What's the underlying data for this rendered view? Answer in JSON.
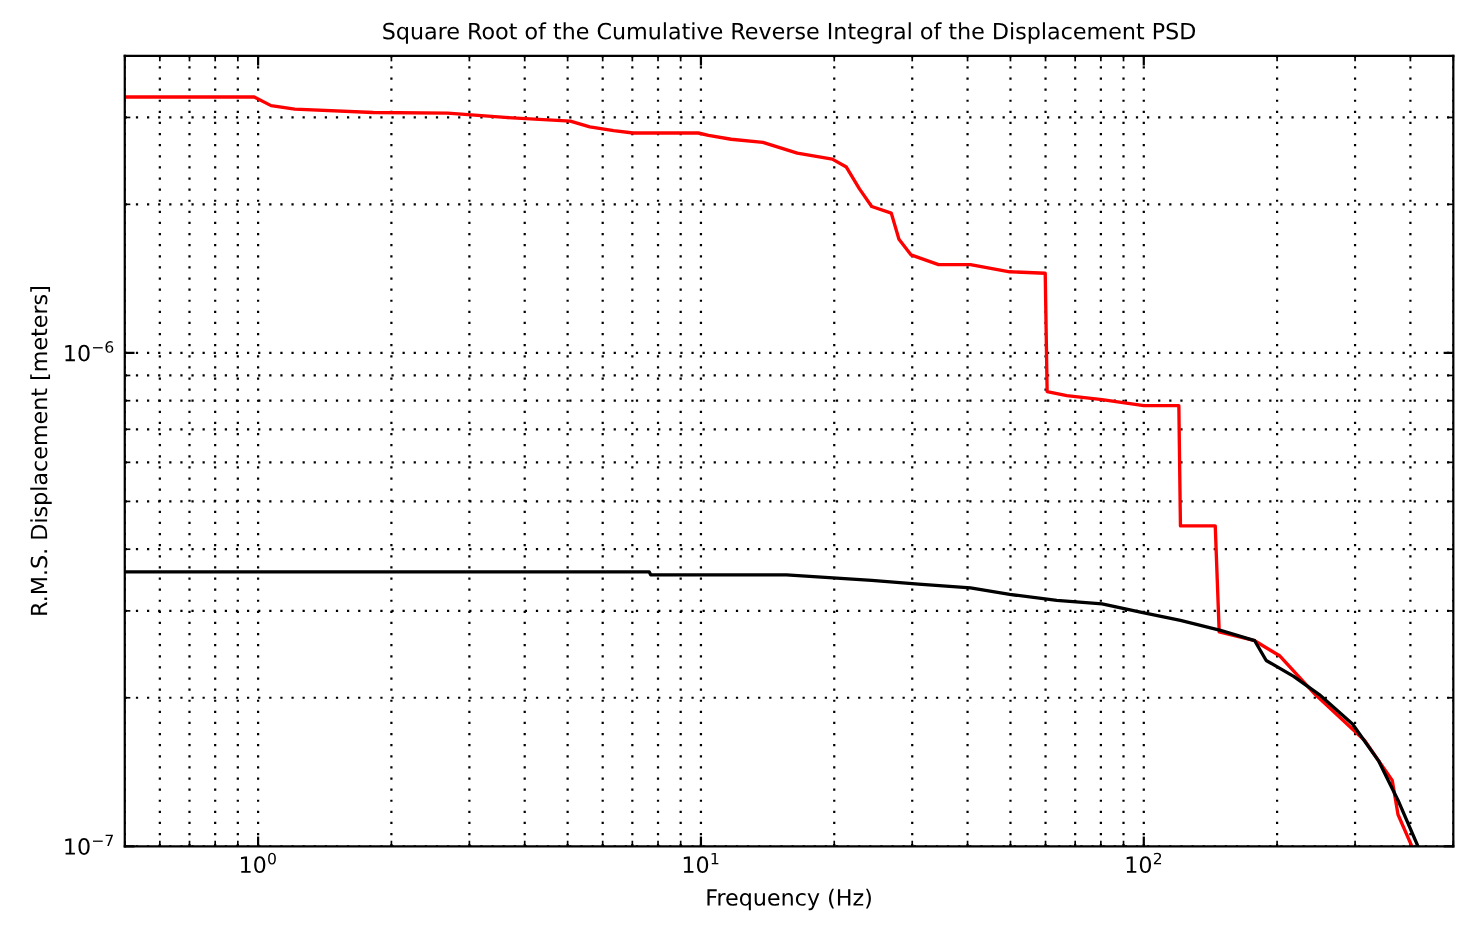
{
  "chart_data": {
    "type": "line",
    "title": "Square Root of the Cumulative Reverse Integral of the Displacement PSD",
    "xlabel": "Frequency (Hz)",
    "ylabel": "R.M.S. Displacement [meters]",
    "log": "xy",
    "grid": true,
    "xlim": [
      0.5,
      500
    ],
    "ylim": [
      1e-07,
      4e-06
    ],
    "xticks": [
      {
        "value": 1,
        "label": "10$^{0}$"
      },
      {
        "value": 10,
        "label": "10$^{1}$"
      },
      {
        "value": 100,
        "label": "10$^{2}$"
      }
    ],
    "yticks": [
      {
        "value": 1e-07,
        "label": "10$^{−7}$"
      },
      {
        "value": 1e-06,
        "label": "10$^{−6}$"
      }
    ],
    "series": [
      {
        "color": "#ff0000",
        "x": [
          0.5,
          0.98,
          1.07,
          1.21,
          1.82,
          2.68,
          3.61,
          5.07,
          5.61,
          6.35,
          7.03,
          9.86,
          10.4,
          11.7,
          13.8,
          16.5,
          19.8,
          21.3,
          22.8,
          24.3,
          26.9,
          28.0,
          29.8,
          34.4,
          40.6,
          49.8,
          59.9,
          60.5,
          67.0,
          80.5,
          100,
          120,
          121,
          145,
          148,
          178,
          203,
          244,
          315,
          364,
          375,
          403
        ],
        "values": [
          3.3e-06,
          3.3e-06,
          3.17e-06,
          3.12e-06,
          3.07e-06,
          3.06e-06,
          3e-06,
          2.95e-06,
          2.87e-06,
          2.82e-06,
          2.79e-06,
          2.79e-06,
          2.76e-06,
          2.71e-06,
          2.67e-06,
          2.54e-06,
          2.47e-06,
          2.38e-06,
          2.15e-06,
          1.98e-06,
          1.92e-06,
          1.7e-06,
          1.58e-06,
          1.51e-06,
          1.51e-06,
          1.46e-06,
          1.45e-06,
          8.35e-07,
          8.19e-07,
          8.04e-07,
          7.82e-07,
          7.82e-07,
          4.46e-07,
          4.46e-07,
          2.72e-07,
          2.61e-07,
          2.43e-07,
          2.03e-07,
          1.64e-07,
          1.36e-07,
          1.16e-07,
          1e-07
        ]
      },
      {
        "color": "#000000",
        "x": [
          0.5,
          7.64,
          7.7,
          15.6,
          24.3,
          31.0,
          40.6,
          49.8,
          63.6,
          80.5,
          98.9,
          121,
          149,
          178,
          189,
          218,
          249,
          296,
          339,
          375,
          416
        ],
        "values": [
          3.6e-07,
          3.6e-07,
          3.55e-07,
          3.55e-07,
          3.46e-07,
          3.4e-07,
          3.34e-07,
          3.24e-07,
          3.15e-07,
          3.1e-07,
          2.98e-07,
          2.87e-07,
          2.74e-07,
          2.61e-07,
          2.38e-07,
          2.21e-07,
          2.03e-07,
          1.77e-07,
          1.49e-07,
          1.24e-07,
          1e-07
        ]
      }
    ]
  }
}
